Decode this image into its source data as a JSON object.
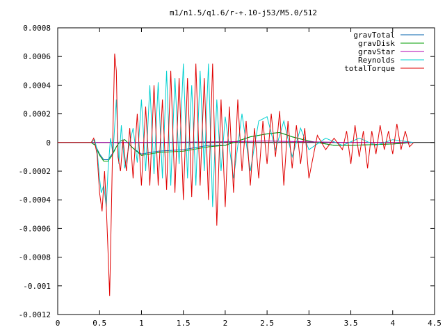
{
  "chart_data": {
    "type": "line",
    "title": "m1/n1.5/q1.6/r-+.10-j53/M5.0/512",
    "xlabel": "",
    "ylabel": "",
    "xlim": [
      0,
      4.5
    ],
    "ylim": [
      -0.0012,
      0.0008
    ],
    "x_ticks": [
      {
        "value": 0,
        "label": "0"
      },
      {
        "value": 0.5,
        "label": "0.5"
      },
      {
        "value": 1,
        "label": "1"
      },
      {
        "value": 1.5,
        "label": "1.5"
      },
      {
        "value": 2,
        "label": "2"
      },
      {
        "value": 2.5,
        "label": "2.5"
      },
      {
        "value": 3,
        "label": "3"
      },
      {
        "value": 3.5,
        "label": "3.5"
      },
      {
        "value": 4,
        "label": "4"
      },
      {
        "value": 4.5,
        "label": "4.5"
      }
    ],
    "y_ticks": [
      {
        "value": 0.0008,
        "label": "0.0008"
      },
      {
        "value": 0.0006,
        "label": "0.0006"
      },
      {
        "value": 0.0004,
        "label": "0.0004"
      },
      {
        "value": 0.0002,
        "label": "0.0002"
      },
      {
        "value": 0,
        "label": "0"
      },
      {
        "value": -0.0002,
        "label": "-0.0002"
      },
      {
        "value": -0.0004,
        "label": "-0.0004"
      },
      {
        "value": -0.0006,
        "label": "-0.0006"
      },
      {
        "value": -0.0008,
        "label": "-0.0008"
      },
      {
        "value": -0.001,
        "label": "-0.001"
      },
      {
        "value": -0.0012,
        "label": "-0.0012"
      }
    ],
    "grid": false,
    "legend_position": "top-right",
    "series": [
      {
        "name": "gravTotal",
        "color": "#0060ad",
        "x": [
          0,
          0.4,
          0.45,
          0.5,
          0.55,
          0.6,
          0.65,
          0.7,
          0.75,
          0.8,
          0.9,
          1.0,
          1.2,
          1.5,
          1.8,
          2.0,
          2.3,
          2.5,
          2.65,
          2.8,
          3.0,
          3.3,
          3.5,
          4.0,
          4.25
        ],
        "y": [
          0,
          0,
          -2e-05,
          -8e-05,
          -0.00012,
          -0.00012,
          -8e-05,
          -3e-05,
          1e-05,
          2e-05,
          -4e-05,
          -8e-05,
          -6e-05,
          -5e-05,
          -2e-05,
          -2e-05,
          4e-05,
          6e-05,
          7e-05,
          4e-05,
          1e-05,
          -2e-05,
          -2e-05,
          -1e-05,
          0
        ]
      },
      {
        "name": "gravDisk",
        "color": "#009e00",
        "x": [
          0,
          0.4,
          0.45,
          0.5,
          0.55,
          0.6,
          0.65,
          0.7,
          0.75,
          0.8,
          0.9,
          1.0,
          1.2,
          1.5,
          1.8,
          2.0,
          2.3,
          2.5,
          2.65,
          2.8,
          3.0,
          3.3,
          3.5,
          4.0,
          4.25
        ],
        "y": [
          0,
          0,
          -2e-05,
          -9e-05,
          -0.00013,
          -0.00013,
          -9e-05,
          -3e-05,
          1e-05,
          2e-05,
          -4e-05,
          -9e-05,
          -7e-05,
          -6e-05,
          -3e-05,
          -2e-05,
          4e-05,
          6e-05,
          7e-05,
          4e-05,
          1e-05,
          -2e-05,
          -2e-05,
          -1e-05,
          0
        ]
      },
      {
        "name": "gravStar",
        "color": "#b000b0",
        "x": [
          0,
          1.0,
          2.0,
          2.5,
          3.0,
          3.5,
          4.25
        ],
        "y": [
          0,
          0,
          5e-06,
          1e-05,
          5e-06,
          0,
          0
        ]
      },
      {
        "name": "Reynolds",
        "color": "#00d0d0",
        "x": [
          0,
          0.4,
          0.44,
          0.47,
          0.5,
          0.52,
          0.55,
          0.58,
          0.6,
          0.63,
          0.66,
          0.7,
          0.73,
          0.76,
          0.8,
          0.85,
          0.9,
          0.95,
          1.0,
          1.05,
          1.1,
          1.15,
          1.2,
          1.25,
          1.3,
          1.35,
          1.4,
          1.45,
          1.5,
          1.55,
          1.6,
          1.65,
          1.7,
          1.75,
          1.8,
          1.85,
          1.9,
          1.95,
          2.0,
          2.1,
          2.2,
          2.3,
          2.4,
          2.5,
          2.6,
          2.7,
          2.8,
          2.9,
          3.0,
          3.2,
          3.4,
          3.6,
          3.8,
          4.0,
          4.25
        ],
        "y": [
          0,
          0,
          2e-05,
          -5e-05,
          -0.00025,
          -0.00035,
          -0.0003,
          -0.00045,
          -0.0002,
          3e-05,
          -8e-05,
          0.0003,
          -0.00015,
          0.00012,
          -0.00018,
          -3e-05,
          0.0001,
          -0.00014,
          0.0003,
          -0.0002,
          0.0004,
          -0.00022,
          0.00042,
          -0.00025,
          0.0005,
          -0.0003,
          0.00045,
          -0.00015,
          0.00055,
          -0.00025,
          0.0004,
          -0.0003,
          0.0005,
          -0.0002,
          0.00055,
          -0.00045,
          0.0003,
          -0.0002,
          0.00018,
          -0.00025,
          0.0002,
          -0.0002,
          0.00015,
          0.00018,
          -5e-05,
          0.00015,
          -0.0001,
          0.0001,
          -5e-05,
          3e-05,
          -2e-05,
          3e-05,
          -2e-05,
          2e-05,
          0
        ]
      },
      {
        "name": "totalTorque",
        "color": "#e00000",
        "x": [
          0,
          0.4,
          0.43,
          0.47,
          0.5,
          0.53,
          0.56,
          0.58,
          0.6,
          0.62,
          0.64,
          0.66,
          0.68,
          0.7,
          0.72,
          0.75,
          0.78,
          0.82,
          0.86,
          0.9,
          0.95,
          1.0,
          1.05,
          1.1,
          1.15,
          1.2,
          1.25,
          1.3,
          1.35,
          1.4,
          1.45,
          1.5,
          1.55,
          1.6,
          1.65,
          1.7,
          1.75,
          1.8,
          1.85,
          1.9,
          1.95,
          2.0,
          2.05,
          2.1,
          2.15,
          2.2,
          2.25,
          2.3,
          2.35,
          2.4,
          2.45,
          2.5,
          2.55,
          2.6,
          2.65,
          2.7,
          2.75,
          2.8,
          2.85,
          2.9,
          2.95,
          3.0,
          3.1,
          3.2,
          3.3,
          3.4,
          3.45,
          3.5,
          3.55,
          3.6,
          3.65,
          3.7,
          3.75,
          3.8,
          3.85,
          3.9,
          3.95,
          4.0,
          4.05,
          4.1,
          4.15,
          4.2,
          4.25
        ],
        "y": [
          0,
          0,
          3e-05,
          -8e-05,
          -0.00035,
          -0.00048,
          -0.0002,
          -0.00045,
          -0.00075,
          -0.00107,
          -0.0005,
          0.0001,
          0.00062,
          0.0005,
          -0.0001,
          -0.0002,
          2e-05,
          -0.0002,
          0.0001,
          -0.00025,
          0.0002,
          -0.0003,
          0.00025,
          -0.0003,
          0.0004,
          -0.0003,
          0.0003,
          -0.00033,
          0.0005,
          -0.00035,
          0.00045,
          -0.0004,
          0.00045,
          -0.00038,
          0.00055,
          -0.0003,
          0.00045,
          -0.0004,
          0.00055,
          -0.00058,
          0.0003,
          -0.00045,
          0.00025,
          -0.00035,
          0.0003,
          -0.0002,
          0.00015,
          -0.0003,
          0.0001,
          -0.00025,
          0.00015,
          -0.00015,
          0.0002,
          -0.0001,
          0.00022,
          -0.0003,
          0.00015,
          -0.00018,
          0.00012,
          -0.00015,
          0.0001,
          -0.00025,
          5e-05,
          -5e-05,
          3e-05,
          -5e-05,
          8e-05,
          -0.00015,
          0.00012,
          -0.0001,
          8e-05,
          -0.00018,
          8e-05,
          -8e-05,
          0.00012,
          -5e-05,
          8e-05,
          -8e-05,
          0.00013,
          -5e-05,
          8e-05,
          -3e-05,
          0
        ]
      }
    ]
  }
}
